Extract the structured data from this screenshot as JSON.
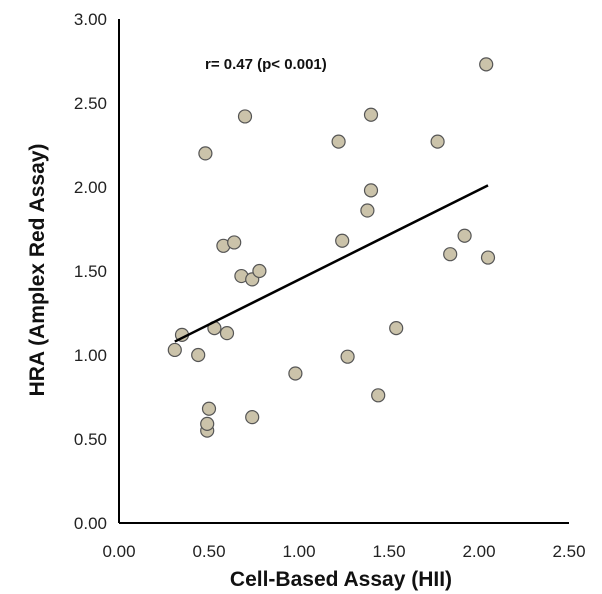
{
  "chart_data": {
    "type": "scatter",
    "xlabel": "Cell-Based Assay (HII)",
    "ylabel": "HRA (Amplex Red Assay)",
    "xlim": [
      0,
      2.5
    ],
    "ylim": [
      0,
      3.0
    ],
    "x_ticks": [
      "0.00",
      "0.50",
      "1.00",
      "1.50",
      "2.00",
      "2.50"
    ],
    "y_ticks": [
      "0.00",
      "0.50",
      "1.00",
      "1.50",
      "2.00",
      "2.50",
      "3.00"
    ],
    "annotation": "r= 0.47 (p< 0.001)",
    "grid": false,
    "marker_color": "#cbc3aa",
    "trendline": {
      "x_start": 0.31,
      "x_end": 2.05,
      "y_start": 1.08,
      "y_end": 2.01
    },
    "points": [
      {
        "x": 0.31,
        "y": 1.03
      },
      {
        "x": 0.35,
        "y": 1.12
      },
      {
        "x": 0.44,
        "y": 1.0
      },
      {
        "x": 0.48,
        "y": 2.2
      },
      {
        "x": 0.49,
        "y": 0.55
      },
      {
        "x": 0.49,
        "y": 0.59
      },
      {
        "x": 0.5,
        "y": 0.68
      },
      {
        "x": 0.53,
        "y": 1.16
      },
      {
        "x": 0.58,
        "y": 1.65
      },
      {
        "x": 0.6,
        "y": 1.13
      },
      {
        "x": 0.64,
        "y": 1.67
      },
      {
        "x": 0.68,
        "y": 1.47
      },
      {
        "x": 0.7,
        "y": 2.42
      },
      {
        "x": 0.74,
        "y": 1.45
      },
      {
        "x": 0.74,
        "y": 0.63
      },
      {
        "x": 0.78,
        "y": 1.5
      },
      {
        "x": 0.98,
        "y": 0.89
      },
      {
        "x": 1.22,
        "y": 2.27
      },
      {
        "x": 1.24,
        "y": 1.68
      },
      {
        "x": 1.27,
        "y": 0.99
      },
      {
        "x": 1.38,
        "y": 1.86
      },
      {
        "x": 1.4,
        "y": 1.98
      },
      {
        "x": 1.4,
        "y": 2.43
      },
      {
        "x": 1.44,
        "y": 0.76
      },
      {
        "x": 1.54,
        "y": 1.16
      },
      {
        "x": 1.77,
        "y": 2.27
      },
      {
        "x": 1.84,
        "y": 1.6
      },
      {
        "x": 1.92,
        "y": 1.71
      },
      {
        "x": 2.04,
        "y": 2.73
      },
      {
        "x": 2.05,
        "y": 1.58
      }
    ]
  }
}
